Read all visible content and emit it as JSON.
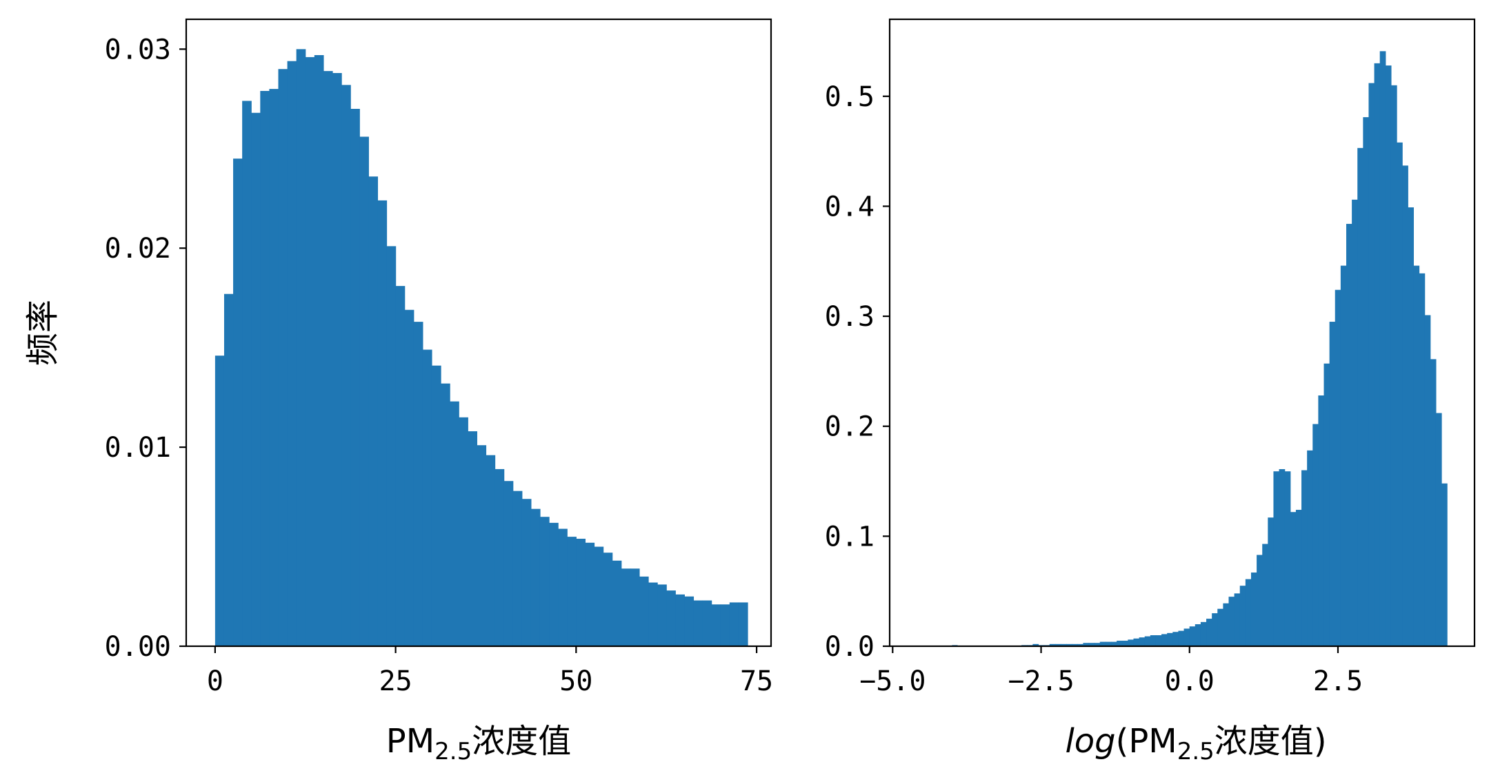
{
  "chart_data": [
    {
      "type": "bar",
      "subtype": "histogram",
      "color": "#1f77b4",
      "xlabel": "PM2.5浓度值",
      "xlabel_parts": {
        "main": "PM",
        "sub": "2.5",
        "suffix": "浓度值"
      },
      "ylabel": "频率",
      "xlim": [
        -4,
        77
      ],
      "ylim": [
        0,
        0.0315
      ],
      "xticks": [
        0,
        25,
        50,
        75
      ],
      "xtick_labels": [
        "0",
        "25",
        "50",
        "75"
      ],
      "yticks": [
        0,
        0.01,
        0.02,
        0.03
      ],
      "ytick_labels": [
        "0.00",
        "0.01",
        "0.02",
        "0.03"
      ],
      "bin_start": 0,
      "bin_width": 1.25,
      "values": [
        0.0146,
        0.0177,
        0.0245,
        0.0274,
        0.0268,
        0.0279,
        0.028,
        0.029,
        0.0294,
        0.03,
        0.0296,
        0.0297,
        0.0289,
        0.0288,
        0.0282,
        0.027,
        0.0256,
        0.0236,
        0.0224,
        0.0201,
        0.0181,
        0.0169,
        0.0163,
        0.0149,
        0.0141,
        0.0132,
        0.0123,
        0.0115,
        0.0108,
        0.0101,
        0.0096,
        0.0089,
        0.0083,
        0.0078,
        0.0074,
        0.0069,
        0.0065,
        0.0062,
        0.0059,
        0.0055,
        0.0054,
        0.0052,
        0.005,
        0.0047,
        0.0043,
        0.0039,
        0.0039,
        0.0035,
        0.0032,
        0.0031,
        0.0028,
        0.0026,
        0.0025,
        0.0023,
        0.0023,
        0.0021,
        0.0021,
        0.0022,
        0.0022
      ]
    },
    {
      "type": "bar",
      "subtype": "histogram",
      "color": "#1f77b4",
      "xlabel": "log(PM2.5浓度值)",
      "xlabel_parts": {
        "prefix": "log",
        "open": "(",
        "main": "PM",
        "sub": "2.5",
        "suffix": "浓度值",
        "close": ")"
      },
      "ylabel": "",
      "xlim": [
        -5.05,
        4.8
      ],
      "ylim": [
        0,
        0.57
      ],
      "xticks": [
        -5.0,
        -2.5,
        0.0,
        2.5
      ],
      "xtick_labels": [
        "−5.0",
        "−2.5",
        "0.0",
        "2.5"
      ],
      "yticks": [
        0,
        0.1,
        0.2,
        0.3,
        0.4,
        0.5
      ],
      "ytick_labels": [
        "0.0",
        "0.1",
        "0.2",
        "0.3",
        "0.4",
        "0.5"
      ],
      "bin_start": -2.83,
      "bin_width": 0.0943,
      "outliers": [
        {
          "x": -4.0,
          "value": 0.001
        }
      ],
      "values": [
        0.001,
        0.001,
        0.002,
        0.001,
        0.001,
        0.002,
        0.002,
        0.002,
        0.002,
        0.002,
        0.002,
        0.003,
        0.003,
        0.003,
        0.004,
        0.004,
        0.004,
        0.005,
        0.005,
        0.006,
        0.007,
        0.008,
        0.009,
        0.01,
        0.01,
        0.011,
        0.012,
        0.013,
        0.014,
        0.016,
        0.018,
        0.02,
        0.022,
        0.025,
        0.03,
        0.034,
        0.039,
        0.045,
        0.048,
        0.055,
        0.061,
        0.067,
        0.083,
        0.093,
        0.117,
        0.159,
        0.161,
        0.159,
        0.122,
        0.124,
        0.16,
        0.178,
        0.202,
        0.228,
        0.257,
        0.295,
        0.324,
        0.346,
        0.384,
        0.406,
        0.453,
        0.481,
        0.512,
        0.53,
        0.541,
        0.528,
        0.51,
        0.458,
        0.437,
        0.399,
        0.346,
        0.339,
        0.301,
        0.261,
        0.212,
        0.148
      ]
    }
  ]
}
